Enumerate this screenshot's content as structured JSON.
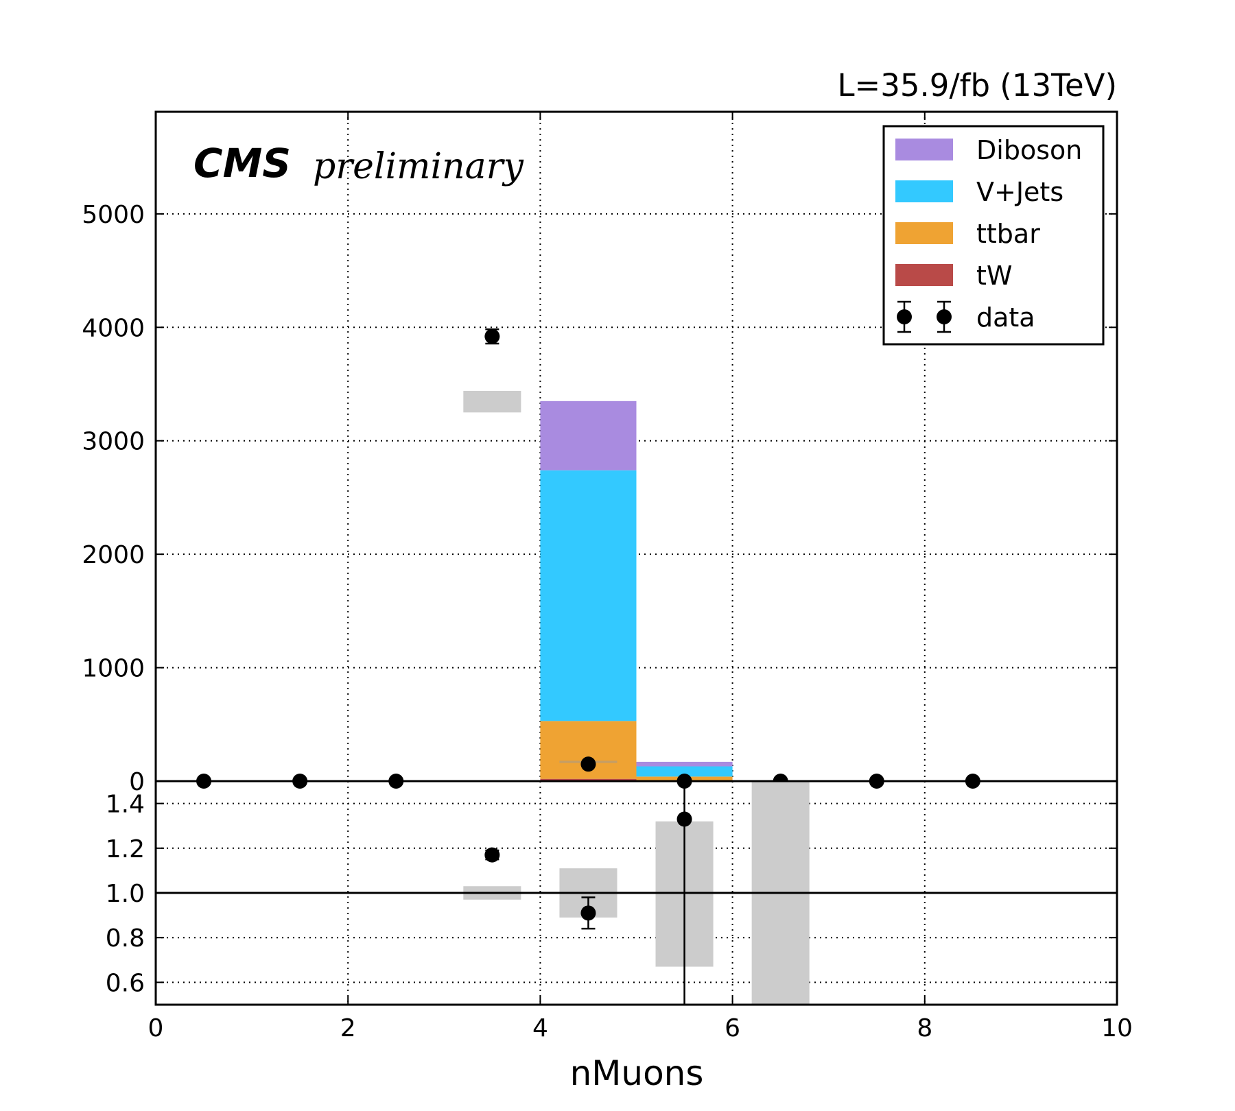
{
  "header": {
    "luminosity": "L=35.9/fb (13TeV)",
    "experiment": "CMS",
    "status": "preliminary"
  },
  "chart_data": [
    {
      "panel": "main",
      "type": "bar",
      "stacked": true,
      "xlabel": "nMuons",
      "xlim": [
        0,
        10
      ],
      "ylim": [
        0,
        5900
      ],
      "xticks": [
        "0",
        "2",
        "4",
        "6",
        "8",
        "10"
      ],
      "yticks": [
        "0",
        "1000",
        "2000",
        "3000",
        "4000",
        "5000"
      ],
      "grid": true,
      "legend_position": "top-right",
      "bins": [
        0,
        1,
        2,
        3,
        4,
        5,
        6,
        7,
        8,
        9
      ],
      "series": [
        {
          "name": "tW",
          "color": "#b94a48",
          "values": [
            0,
            0,
            0,
            0,
            20,
            5,
            0,
            0,
            0,
            0
          ]
        },
        {
          "name": "ttbar",
          "color": "#efa333",
          "values": [
            0,
            0,
            0,
            0,
            510,
            35,
            0,
            0,
            0,
            0
          ]
        },
        {
          "name": "V+Jets",
          "color": "#33c9ff",
          "values": [
            0,
            0,
            0,
            0,
            2210,
            90,
            0,
            0,
            0,
            0
          ]
        },
        {
          "name": "Diboson",
          "color": "#a98be0",
          "values": [
            0,
            0,
            0,
            0,
            610,
            40,
            0,
            0,
            0,
            0
          ]
        }
      ],
      "mc_uncertainty": [
        {
          "bin": 3,
          "low": 3250,
          "high": 3440
        },
        {
          "bin": 4,
          "low": 160,
          "high": 180
        }
      ],
      "data": {
        "name": "data",
        "x": [
          0.5,
          1.5,
          2.5,
          3.5,
          4.5,
          5.5,
          6.5,
          7.5,
          8.5
        ],
        "y": [
          0,
          0,
          0,
          3920,
          150,
          0,
          0,
          0,
          0
        ],
        "yerr": [
          0,
          0,
          0,
          63,
          12,
          0,
          0,
          0,
          0
        ]
      }
    },
    {
      "panel": "ratio",
      "type": "scatter",
      "xlim": [
        0,
        10
      ],
      "ylim": [
        0.5,
        1.5
      ],
      "yticks": [
        "0.6",
        "0.8",
        "1.0",
        "1.2",
        "1.4"
      ],
      "reference_line": 1.0,
      "points": [
        {
          "x": 3.5,
          "y": 1.17,
          "yerr": 0.02
        },
        {
          "x": 4.5,
          "y": 0.91,
          "yerr": 0.07
        },
        {
          "x": 5.5,
          "y": 1.33,
          "yerr": 1.0
        }
      ],
      "uncertainty_bands": [
        {
          "bin": 3,
          "low": 0.97,
          "high": 1.03
        },
        {
          "bin": 4,
          "low": 0.89,
          "high": 1.11
        },
        {
          "bin": 5,
          "low": 0.67,
          "high": 1.32
        },
        {
          "bin": 6,
          "low": 0.5,
          "high": 1.5
        }
      ]
    }
  ]
}
